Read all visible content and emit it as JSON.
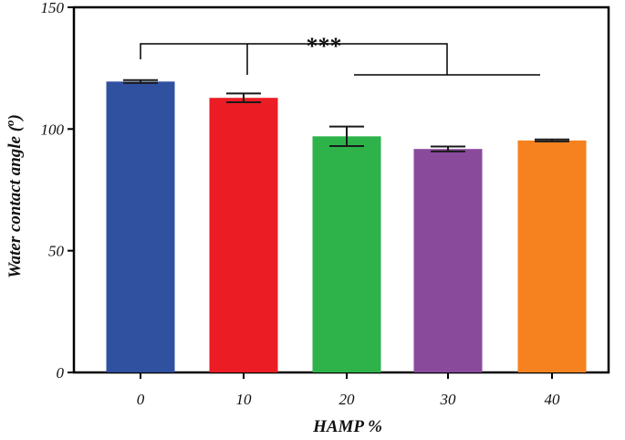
{
  "chart_data": {
    "type": "bar",
    "categories": [
      "0",
      "10",
      "20",
      "30",
      "40"
    ],
    "values": [
      119.5,
      112.8,
      97.0,
      91.8,
      95.3
    ],
    "errors": [
      0.6,
      1.8,
      4.0,
      1.0,
      0.4
    ],
    "colors": [
      "#3050a0",
      "#ec1c24",
      "#2db34a",
      "#8a4a9c",
      "#f5821f"
    ],
    "xlabel": "HAMP %",
    "ylabel": "Water contact angle (o)",
    "ylabel_main": "Water contact angle (",
    "ylabel_sup": "o",
    "ylabel_end": ")",
    "ylim": [
      0,
      150
    ],
    "yticks": [
      0,
      50,
      100,
      150
    ],
    "significance": {
      "label": "***"
    },
    "grid": false,
    "legend": "none"
  }
}
